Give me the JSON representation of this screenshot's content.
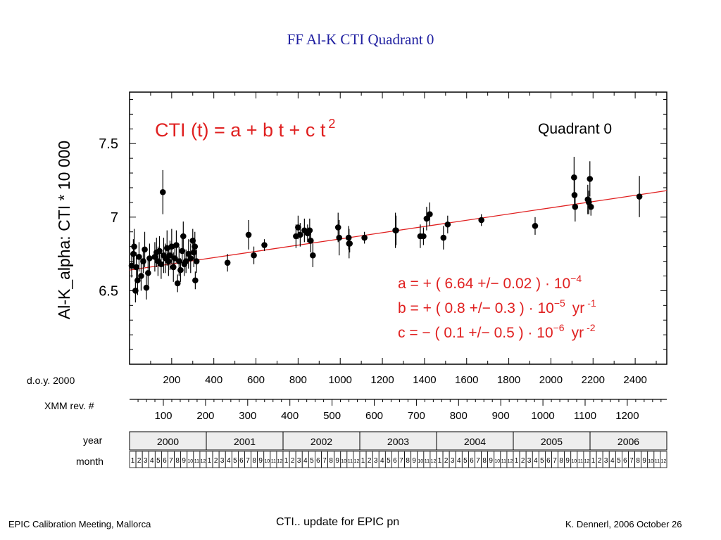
{
  "slide": {
    "title": "FF   Al-K   CTI   Quadrant 0",
    "footer_left": "EPIC Calibration Meeting, Mallorca",
    "footer_center": "CTI.. update for EPIC pn",
    "footer_right": "K. Dennerl, 2006 October 26"
  },
  "colors": {
    "title": "#1f1fa0",
    "fit": "#e02020",
    "points": "#000000"
  },
  "chart_data": {
    "type": "scatter",
    "title": "Quadrant 0",
    "formula": {
      "lhs": "CTI (t)  =  a + b t + c t",
      "exp": "2"
    },
    "ylabel": "Al-K_alpha:  CTI * 10 000",
    "xlabel": "d.o.y. 2000",
    "xlim": [
      0,
      2550
    ],
    "ylim": [
      6.0,
      7.85
    ],
    "x_ticks": [
      200,
      400,
      600,
      800,
      1000,
      1200,
      1400,
      1600,
      1800,
      2000,
      2200,
      2400
    ],
    "y_ticks": [
      "6.5",
      "7",
      "7.5"
    ],
    "y_tick_values": [
      6.5,
      7.0,
      7.5
    ],
    "fit": {
      "x": [
        0,
        2550
      ],
      "y": [
        6.64,
        7.18
      ]
    },
    "coefficients": [
      {
        "name": "a",
        "sign": "+",
        "value": "6.64 +/− 0.02",
        "unit": "10",
        "exp": "−4",
        "yr": "",
        "yr_exp": ""
      },
      {
        "name": "b",
        "sign": "+",
        "value": "0.8 +/− 0.3",
        "unit": "10",
        "exp": "−5",
        "yr": "yr",
        "yr_exp": "-1"
      },
      {
        "name": "c",
        "sign": "−",
        "value": "0.1 +/− 0.5",
        "unit": "10",
        "exp": "−6",
        "yr": "yr",
        "yr_exp": "-2"
      }
    ],
    "points": [
      {
        "x": 10,
        "y": 6.67,
        "e": 0.08
      },
      {
        "x": 18,
        "y": 6.75,
        "e": 0.1
      },
      {
        "x": 22,
        "y": 6.8,
        "e": 0.12
      },
      {
        "x": 28,
        "y": 6.5,
        "e": 0.08
      },
      {
        "x": 32,
        "y": 6.66,
        "e": 0.1
      },
      {
        "x": 38,
        "y": 6.57,
        "e": 0.1
      },
      {
        "x": 45,
        "y": 6.73,
        "e": 0.1
      },
      {
        "x": 55,
        "y": 6.6,
        "e": 0.1
      },
      {
        "x": 65,
        "y": 6.7,
        "e": 0.08
      },
      {
        "x": 72,
        "y": 6.78,
        "e": 0.12
      },
      {
        "x": 80,
        "y": 6.52,
        "e": 0.08
      },
      {
        "x": 88,
        "y": 6.62,
        "e": 0.1
      },
      {
        "x": 95,
        "y": 6.72,
        "e": 0.1
      },
      {
        "x": 120,
        "y": 6.73,
        "e": 0.1
      },
      {
        "x": 128,
        "y": 6.76,
        "e": 0.1
      },
      {
        "x": 135,
        "y": 6.7,
        "e": 0.1
      },
      {
        "x": 142,
        "y": 6.77,
        "e": 0.1
      },
      {
        "x": 150,
        "y": 6.68,
        "e": 0.1
      },
      {
        "x": 158,
        "y": 7.17,
        "e": 0.15
      },
      {
        "x": 162,
        "y": 6.74,
        "e": 0.12
      },
      {
        "x": 170,
        "y": 6.72,
        "e": 0.1
      },
      {
        "x": 178,
        "y": 6.79,
        "e": 0.12
      },
      {
        "x": 185,
        "y": 6.7,
        "e": 0.1
      },
      {
        "x": 192,
        "y": 6.74,
        "e": 0.1
      },
      {
        "x": 200,
        "y": 6.8,
        "e": 0.12
      },
      {
        "x": 208,
        "y": 6.66,
        "e": 0.1
      },
      {
        "x": 215,
        "y": 6.72,
        "e": 0.08
      },
      {
        "x": 222,
        "y": 6.81,
        "e": 0.1
      },
      {
        "x": 228,
        "y": 6.55,
        "e": 0.06
      },
      {
        "x": 235,
        "y": 6.7,
        "e": 0.1
      },
      {
        "x": 242,
        "y": 6.64,
        "e": 0.08
      },
      {
        "x": 250,
        "y": 6.77,
        "e": 0.1
      },
      {
        "x": 255,
        "y": 6.87,
        "e": 0.1
      },
      {
        "x": 260,
        "y": 6.68,
        "e": 0.08
      },
      {
        "x": 268,
        "y": 6.7,
        "e": 0.08
      },
      {
        "x": 280,
        "y": 6.75,
        "e": 0.1
      },
      {
        "x": 290,
        "y": 6.72,
        "e": 0.1
      },
      {
        "x": 300,
        "y": 6.84,
        "e": 0.08
      },
      {
        "x": 305,
        "y": 6.76,
        "e": 0.1
      },
      {
        "x": 310,
        "y": 6.8,
        "e": 0.1
      },
      {
        "x": 312,
        "y": 6.57,
        "e": 0.06
      },
      {
        "x": 318,
        "y": 6.7,
        "e": 0.08
      },
      {
        "x": 465,
        "y": 6.69,
        "e": 0.06
      },
      {
        "x": 565,
        "y": 6.88,
        "e": 0.1
      },
      {
        "x": 590,
        "y": 6.74,
        "e": 0.06
      },
      {
        "x": 640,
        "y": 6.81,
        "e": 0.04
      },
      {
        "x": 790,
        "y": 6.87,
        "e": 0.08
      },
      {
        "x": 800,
        "y": 6.93,
        "e": 0.08
      },
      {
        "x": 810,
        "y": 6.88,
        "e": 0.08
      },
      {
        "x": 830,
        "y": 6.91,
        "e": 0.08
      },
      {
        "x": 845,
        "y": 6.89,
        "e": 0.06
      },
      {
        "x": 855,
        "y": 6.91,
        "e": 0.08
      },
      {
        "x": 860,
        "y": 6.84,
        "e": 0.08
      },
      {
        "x": 870,
        "y": 6.74,
        "e": 0.08
      },
      {
        "x": 990,
        "y": 6.93,
        "e": 0.1
      },
      {
        "x": 995,
        "y": 6.86,
        "e": 0.12
      },
      {
        "x": 1040,
        "y": 6.86,
        "e": 0.08
      },
      {
        "x": 1042,
        "y": 6.82,
        "e": 0.1
      },
      {
        "x": 1045,
        "y": 6.82,
        "e": 0.06
      },
      {
        "x": 1115,
        "y": 6.86,
        "e": 0.04
      },
      {
        "x": 1262,
        "y": 6.91,
        "e": 0.12
      },
      {
        "x": 1265,
        "y": 6.91,
        "e": 0.1
      },
      {
        "x": 1380,
        "y": 6.87,
        "e": 0.08
      },
      {
        "x": 1395,
        "y": 6.87,
        "e": 0.06
      },
      {
        "x": 1410,
        "y": 6.99,
        "e": 0.08
      },
      {
        "x": 1425,
        "y": 7.02,
        "e": 0.08
      },
      {
        "x": 1490,
        "y": 6.86,
        "e": 0.08
      },
      {
        "x": 1510,
        "y": 6.95,
        "e": 0.06
      },
      {
        "x": 1670,
        "y": 6.98,
        "e": 0.04
      },
      {
        "x": 1925,
        "y": 6.94,
        "e": 0.06
      },
      {
        "x": 2110,
        "y": 7.27,
        "e": 0.14
      },
      {
        "x": 2112,
        "y": 7.15,
        "e": 0.1
      },
      {
        "x": 2115,
        "y": 7.07,
        "e": 0.1
      },
      {
        "x": 2175,
        "y": 7.12,
        "e": 0.1
      },
      {
        "x": 2180,
        "y": 7.1,
        "e": 0.08
      },
      {
        "x": 2185,
        "y": 7.26,
        "e": 0.12
      },
      {
        "x": 2190,
        "y": 7.07,
        "e": 0.06
      },
      {
        "x": 2420,
        "y": 7.14,
        "e": 0.14
      }
    ],
    "rev_axis": {
      "label": "XMM rev. #",
      "ticks": [
        100,
        200,
        300,
        400,
        500,
        600,
        700,
        800,
        900,
        1000,
        1100,
        1200
      ]
    },
    "year_axis": {
      "label": "year",
      "years": [
        "2000",
        "2001",
        "2002",
        "2003",
        "2004",
        "2005",
        "2006"
      ]
    },
    "month_axis": {
      "label": "month",
      "months": [
        "1",
        "2",
        "3",
        "4",
        "5",
        "6",
        "7",
        "8",
        "9",
        "10",
        "11",
        "12"
      ]
    }
  }
}
